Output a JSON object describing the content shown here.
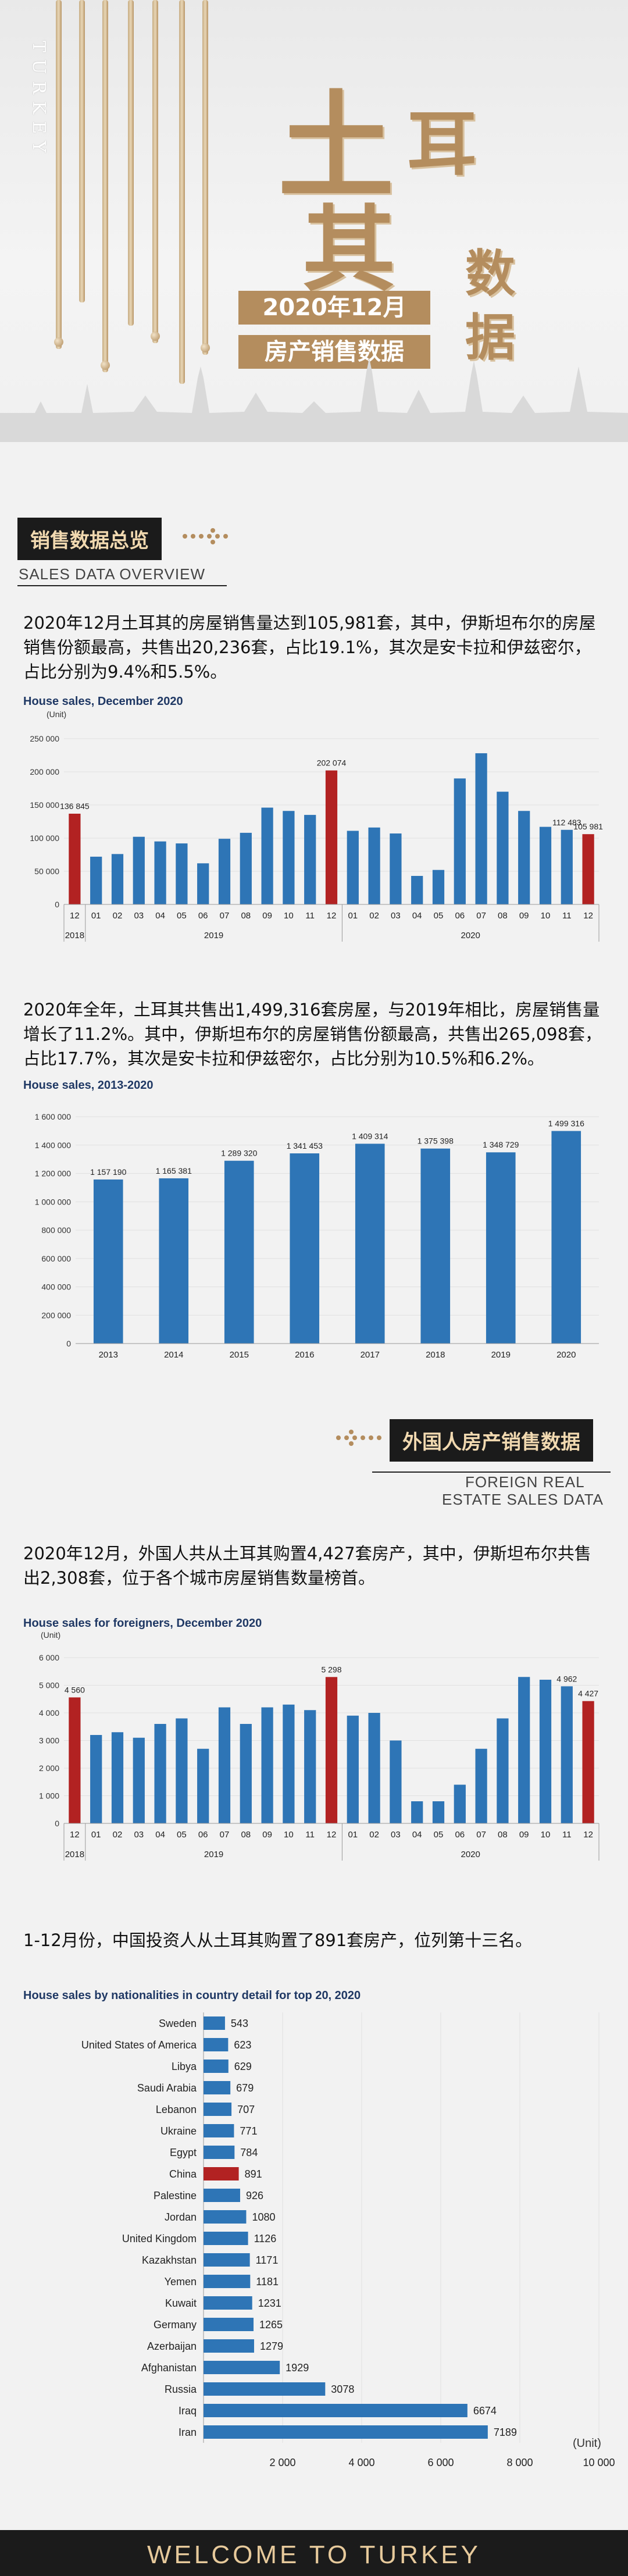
{
  "banner": {
    "vertical_word": "TURKEY",
    "title_chars": [
      "土",
      "耳",
      "其"
    ],
    "data_chars": [
      "数",
      "据"
    ],
    "date_line": "2020年12月",
    "subtitle": "房产销售数据"
  },
  "section1": {
    "label": "销售数据总览",
    "label_en": "SALES DATA OVERVIEW",
    "para": "2020年12月土耳其的房屋销售量达到105,981套，其中，伊斯坦布尔的房屋销售份额最高，共售出20,236套，占比19.1%，其次是安卡拉和伊兹密尔，占比分别为9.4%和5.5%。",
    "para2": "2020年全年，土耳其共售出1,499,316套房屋，与2019年相比，房屋销售量增长了11.2%。其中，伊斯坦布尔的房屋销售份额最高，共售出265,098套，占比17.7%，其次是安卡拉和伊兹密尔，占比分别为10.5%和6.2%。"
  },
  "section2": {
    "label": "外国人房产销售数据",
    "label_en_1": "FOREIGN REAL",
    "label_en_2": "ESTATE SALES DATA",
    "para": "2020年12月，外国人共从土耳其购置4,427套房产，其中，伊斯坦布尔共售出2,308套，位于各个城市房屋销售数量榜首。",
    "para2": "1-12月份，中国投资人从土耳其购置了891套房产，位列第十三名。"
  },
  "footer": {
    "text": "WELCOME TO TURKEY"
  },
  "colors": {
    "blue": "#2e75b6",
    "red": "#b22222",
    "gold": "#b48d5e",
    "dark": "#1b1b1b"
  },
  "chart_data": [
    {
      "type": "bar",
      "title": "House sales, December 2020",
      "ylabel": "(Unit)",
      "ylim": [
        0,
        250000
      ],
      "yticks": [
        "0",
        "50 000",
        "100 000",
        "150 000",
        "200 000",
        "250 000"
      ],
      "categories": [
        "12",
        "01",
        "02",
        "03",
        "04",
        "05",
        "06",
        "07",
        "08",
        "09",
        "10",
        "11",
        "12",
        "01",
        "02",
        "03",
        "04",
        "05",
        "06",
        "07",
        "08",
        "09",
        "10",
        "11",
        "12"
      ],
      "groups": [
        {
          "label": "2018",
          "from": 0,
          "to": 0
        },
        {
          "label": "2019",
          "from": 1,
          "to": 12
        },
        {
          "label": "2020",
          "from": 13,
          "to": 24
        }
      ],
      "values": [
        136845,
        72000,
        76000,
        102000,
        95000,
        92000,
        62000,
        99000,
        108000,
        146000,
        141000,
        135000,
        202074,
        111000,
        116000,
        107000,
        43000,
        52000,
        190000,
        228000,
        170000,
        141000,
        117000,
        112483,
        105981
      ],
      "highlight": [
        0,
        12,
        24
      ],
      "data_labels": {
        "0": "136 845",
        "12": "202 074",
        "23": "112 483",
        "24": "105 981"
      }
    },
    {
      "type": "bar",
      "title": "House sales, 2013-2020",
      "ylim": [
        0,
        1600000
      ],
      "yticks": [
        "0",
        "200 000",
        "400 000",
        "600 000",
        "800 000",
        "1 000 000",
        "1 200 000",
        "1 400 000",
        "1 600 000"
      ],
      "categories": [
        "2013",
        "2014",
        "2015",
        "2016",
        "2017",
        "2018",
        "2019",
        "2020"
      ],
      "values": [
        1157190,
        1165381,
        1289320,
        1341453,
        1409314,
        1375398,
        1348729,
        1499316
      ],
      "data_labels": {
        "0": "1 157 190",
        "1": "1 165 381",
        "2": "1 289 320",
        "3": "1 341 453",
        "4": "1 409 314",
        "5": "1 375 398",
        "6": "1 348 729",
        "7": "1 499 316"
      }
    },
    {
      "type": "bar",
      "title": "House sales for foreigners, December 2020",
      "ylabel": "(Unit)",
      "ylim": [
        0,
        6000
      ],
      "yticks": [
        "0",
        "1 000",
        "2 000",
        "3 000",
        "4 000",
        "5 000",
        "6 000"
      ],
      "categories": [
        "12",
        "01",
        "02",
        "03",
        "04",
        "05",
        "06",
        "07",
        "08",
        "09",
        "10",
        "11",
        "12",
        "01",
        "02",
        "03",
        "04",
        "05",
        "06",
        "07",
        "08",
        "09",
        "10",
        "11",
        "12"
      ],
      "groups": [
        {
          "label": "2018",
          "from": 0,
          "to": 0
        },
        {
          "label": "2019",
          "from": 1,
          "to": 12
        },
        {
          "label": "2020",
          "from": 13,
          "to": 24
        }
      ],
      "values": [
        4560,
        3200,
        3300,
        3100,
        3600,
        3800,
        2700,
        4200,
        3600,
        4200,
        4300,
        4100,
        5298,
        3900,
        4000,
        3000,
        800,
        800,
        1400,
        2700,
        3800,
        5300,
        5200,
        4962,
        4427
      ],
      "highlight": [
        0,
        12,
        24
      ],
      "data_labels": {
        "0": "4 560",
        "12": "5 298",
        "23": "4 962",
        "24": "4 427"
      }
    },
    {
      "type": "bar",
      "orientation": "horizontal",
      "title": "House sales by nationalities in country detail for top 20, 2020",
      "xlabel": "(Unit)",
      "xlim": [
        0,
        10000
      ],
      "xticks": [
        "2 000",
        "4 000",
        "6 000",
        "8 000",
        "10 000"
      ],
      "categories": [
        "Sweden",
        "United States of America",
        "Libya",
        "Saudi Arabia",
        "Lebanon",
        "Ukraine",
        "Egypt",
        "China",
        "Palestine",
        "Jordan",
        "United Kingdom",
        "Kazakhstan",
        "Yemen",
        "Kuwait",
        "Germany",
        "Azerbaijan",
        "Afghanistan",
        "Russia",
        "Iraq",
        "Iran"
      ],
      "values": [
        543,
        623,
        629,
        679,
        707,
        771,
        784,
        891,
        926,
        1080,
        1126,
        1171,
        1181,
        1231,
        1265,
        1279,
        1929,
        3078,
        6674,
        7189
      ],
      "highlight": [
        7
      ]
    }
  ]
}
